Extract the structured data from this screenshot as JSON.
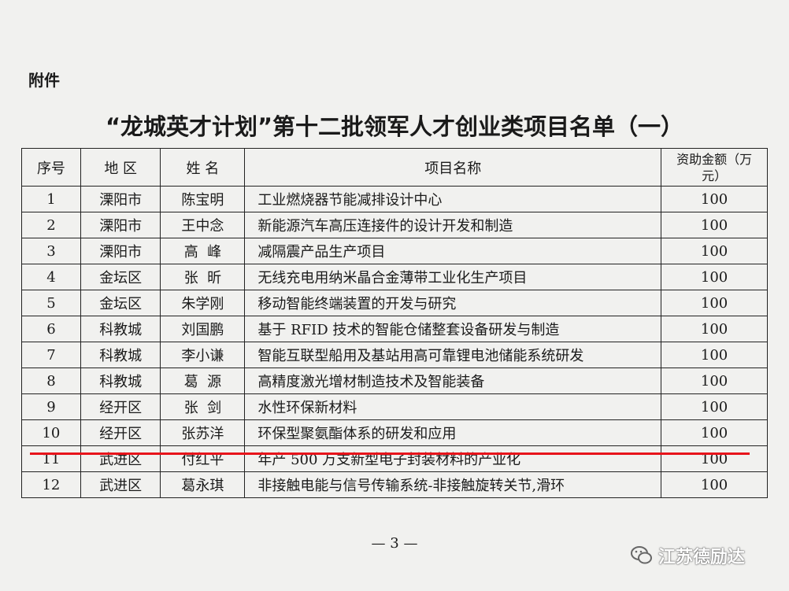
{
  "attachment_label": "附件",
  "title": "“龙城英才计划”第十二批领军人才创业类项目名单（一）",
  "table": {
    "headers": [
      "序号",
      "地 区",
      "姓 名",
      "项目名称",
      "资助金额（万元）"
    ],
    "rows": [
      [
        "1",
        "溧阳市",
        "陈宝明",
        "工业燃烧器节能减排设计中心",
        "100"
      ],
      [
        "2",
        "溧阳市",
        "王中念",
        "新能源汽车高压连接件的设计开发和制造",
        "100"
      ],
      [
        "3",
        "溧阳市",
        "高  峰",
        "减隔震产品生产项目",
        "100"
      ],
      [
        "4",
        "金坛区",
        "张  昕",
        "无线充电用纳米晶合金薄带工业化生产项目",
        "100"
      ],
      [
        "5",
        "金坛区",
        "朱学刚",
        "移动智能终端装置的开发与研究",
        "100"
      ],
      [
        "6",
        "科教城",
        "刘国鹏",
        "基于 RFID 技术的智能仓储整套设备研发与制造",
        "100"
      ],
      [
        "7",
        "科教城",
        "李小谦",
        "智能互联型船用及基站用高可靠锂电池储能系统研发",
        "100"
      ],
      [
        "8",
        "科教城",
        "葛  源",
        "高精度激光增材制造技术及智能装备",
        "100"
      ],
      [
        "9",
        "经开区",
        "张  剑",
        "水性环保新材料",
        "100"
      ],
      [
        "10",
        "经开区",
        "张苏洋",
        "环保型聚氨酯体系的研发和应用",
        "100"
      ],
      [
        "11",
        "武进区",
        "付红平",
        "年产 500 万支新型电子封装材料的产业化",
        "100"
      ],
      [
        "12",
        "武进区",
        "葛永琪",
        "非接触电能与信号传输系统-非接触旋转关节,滑环",
        "100"
      ]
    ]
  },
  "highlight_color": "#e8141b",
  "page_number": "— 3 —",
  "watermark": {
    "icon": "wechat-icon",
    "text": "江苏德励达"
  }
}
